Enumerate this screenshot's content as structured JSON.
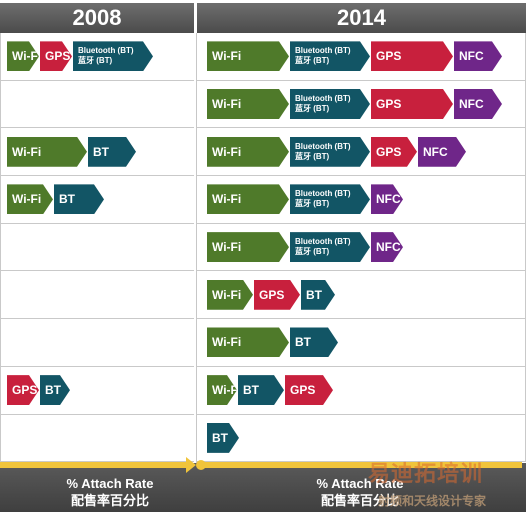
{
  "headers": {
    "left": "2008",
    "right": "2014"
  },
  "rows_2008": [
    [
      {
        "t": "wifi",
        "label": "Wi-Fi",
        "w": 32
      },
      {
        "t": "gps",
        "label": "GPS",
        "w": 32
      },
      {
        "t": "bt2",
        "l1": "Bluetooth (BT)",
        "l2": "蓝牙 (BT)",
        "w": 80
      }
    ],
    [],
    [
      {
        "t": "wifi",
        "label": "Wi-Fi",
        "w": 80
      },
      {
        "t": "bt",
        "label": "BT",
        "w": 48
      }
    ],
    [
      {
        "t": "wifi",
        "label": "Wi-Fi",
        "w": 46
      },
      {
        "t": "bt",
        "label": "BT",
        "w": 50
      }
    ],
    [],
    [],
    [],
    [
      {
        "t": "gps",
        "label": "GPS",
        "w": 32
      },
      {
        "t": "bt",
        "label": "BT",
        "w": 30
      }
    ],
    []
  ],
  "rows_2014": [
    [
      {
        "t": "wifi",
        "label": "Wi-Fi",
        "w": 82
      },
      {
        "t": "bt2",
        "l1": "Bluetooth (BT)",
        "l2": "蓝牙 (BT)",
        "w": 80
      },
      {
        "t": "gps",
        "label": "GPS",
        "w": 82
      },
      {
        "t": "nfc",
        "label": "NFC",
        "w": 48
      }
    ],
    [
      {
        "t": "wifi",
        "label": "Wi-Fi",
        "w": 82
      },
      {
        "t": "bt2",
        "l1": "Bluetooth (BT)",
        "l2": "蓝牙 (BT)",
        "w": 80
      },
      {
        "t": "gps",
        "label": "GPS",
        "w": 82
      },
      {
        "t": "nfc",
        "label": "NFC",
        "w": 48
      }
    ],
    [
      {
        "t": "wifi",
        "label": "Wi-Fi",
        "w": 82
      },
      {
        "t": "bt2",
        "l1": "Bluetooth (BT)",
        "l2": "蓝牙 (BT)",
        "w": 80
      },
      {
        "t": "gps",
        "label": "GPS",
        "w": 46
      },
      {
        "t": "nfc",
        "label": "NFC",
        "w": 48
      }
    ],
    [
      {
        "t": "wifi",
        "label": "Wi-Fi",
        "w": 82
      },
      {
        "t": "bt2",
        "l1": "Bluetooth (BT)",
        "l2": "蓝牙 (BT)",
        "w": 80
      },
      {
        "t": "nfc",
        "label": "NFC",
        "w": 32
      }
    ],
    [
      {
        "t": "wifi",
        "label": "Wi-Fi",
        "w": 82
      },
      {
        "t": "bt2",
        "l1": "Bluetooth (BT)",
        "l2": "蓝牙 (BT)",
        "w": 80
      },
      {
        "t": "nfc",
        "label": "NFC",
        "w": 32
      }
    ],
    [
      {
        "t": "wifi",
        "label": "Wi-Fi",
        "w": 46
      },
      {
        "t": "gps",
        "label": "GPS",
        "w": 46
      },
      {
        "t": "bt",
        "label": "BT",
        "w": 34
      }
    ],
    [
      {
        "t": "wifi",
        "label": "Wi-Fi",
        "w": 82
      },
      {
        "t": "bt",
        "label": "BT",
        "w": 48
      }
    ],
    [
      {
        "t": "wifi",
        "label": "Wi-Fi",
        "w": 30
      },
      {
        "t": "bt",
        "label": "BT",
        "w": 46
      },
      {
        "t": "gps",
        "label": "GPS",
        "w": 48
      }
    ],
    [
      {
        "t": "bt",
        "label": "BT",
        "w": 32
      }
    ]
  ],
  "footer": {
    "left_line1": "% Attach Rate",
    "left_line2": "配售率百分比",
    "right_line1": "% Attach Rate",
    "right_line2": "配售率百分比"
  },
  "watermark": {
    "line1": "易迪拓培训",
    "line2": "射频和天线设计专家"
  }
}
